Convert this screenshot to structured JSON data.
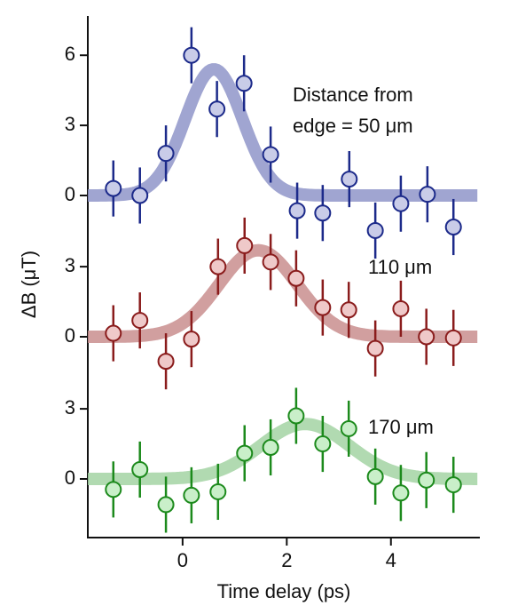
{
  "chart_data": [
    {
      "type": "scatter",
      "color": "#1c2a8a",
      "marker_fill": "#c9cce8",
      "fit_color": "#8f95c9",
      "annotation": [
        "Distance from",
        "edge = 50 μm"
      ],
      "xlim": [
        -1.82,
        5.69
      ],
      "ylim": [
        -1.7,
        7.6
      ],
      "yticks": [
        0,
        3,
        6
      ],
      "x": [
        -1.33,
        -0.82,
        -0.32,
        0.17,
        0.66,
        1.18,
        1.69,
        2.2,
        2.69,
        3.2,
        3.7,
        4.19,
        4.7,
        5.2
      ],
      "values": [
        0.3,
        0.0,
        1.8,
        6.0,
        3.7,
        4.8,
        1.75,
        -0.65,
        -0.75,
        0.7,
        -1.5,
        -0.35,
        0.05,
        -1.35
      ],
      "errors": [
        1.2,
        1.2,
        1.2,
        1.2,
        1.2,
        1.2,
        1.2,
        1.2,
        1.2,
        1.2,
        1.2,
        1.2,
        1.2,
        1.2
      ],
      "fit": {
        "center": 0.6,
        "amplitude": 5.4,
        "sigma": 0.55
      }
    },
    {
      "type": "scatter",
      "color": "#8a1c1c",
      "marker_fill": "#efc9c9",
      "fit_color": "#c98e8e",
      "annotation": [
        "110 μm"
      ],
      "ylabel": "ΔB (μT)",
      "xlim": [
        -1.82,
        5.69
      ],
      "ylim": [
        -1.7,
        4.3
      ],
      "yticks": [
        0,
        3
      ],
      "x": [
        -1.33,
        -0.82,
        -0.32,
        0.17,
        0.68,
        1.19,
        1.69,
        2.18,
        2.69,
        3.19,
        3.7,
        4.19,
        4.68,
        5.2
      ],
      "values": [
        0.15,
        0.7,
        -1.05,
        -0.1,
        3.0,
        3.9,
        3.2,
        2.5,
        1.25,
        1.15,
        -0.5,
        1.2,
        0.0,
        -0.05
      ],
      "errors": [
        1.2,
        1.2,
        1.2,
        1.2,
        1.2,
        1.2,
        1.2,
        1.2,
        1.2,
        1.2,
        1.2,
        1.2,
        1.2,
        1.2
      ],
      "fit": {
        "center": 1.45,
        "amplitude": 3.7,
        "sigma": 0.75
      }
    },
    {
      "type": "scatter",
      "color": "#1c8a1c",
      "marker_fill": "#c9efc9",
      "fit_color": "#a3d3a3",
      "annotation": [
        "170 μm"
      ],
      "xlabel": "Time delay (ps)",
      "xlim": [
        -1.82,
        5.69
      ],
      "ylim": [
        -2.5,
        4.3
      ],
      "yticks": [
        0,
        3
      ],
      "xticks": [
        0,
        2,
        4
      ],
      "x": [
        -1.33,
        -0.82,
        -0.32,
        0.17,
        0.68,
        1.19,
        1.69,
        2.18,
        2.69,
        3.19,
        3.7,
        4.19,
        4.68,
        5.2
      ],
      "values": [
        -0.45,
        0.4,
        -1.1,
        -0.7,
        -0.55,
        1.1,
        1.35,
        2.7,
        1.5,
        2.15,
        0.1,
        -0.6,
        -0.05,
        -0.25
      ],
      "errors": [
        1.2,
        1.2,
        1.2,
        1.2,
        1.2,
        1.2,
        1.2,
        1.2,
        1.2,
        1.2,
        1.2,
        1.2,
        1.2,
        1.2
      ],
      "fit": {
        "center": 2.35,
        "amplitude": 2.35,
        "sigma": 0.85
      }
    }
  ]
}
